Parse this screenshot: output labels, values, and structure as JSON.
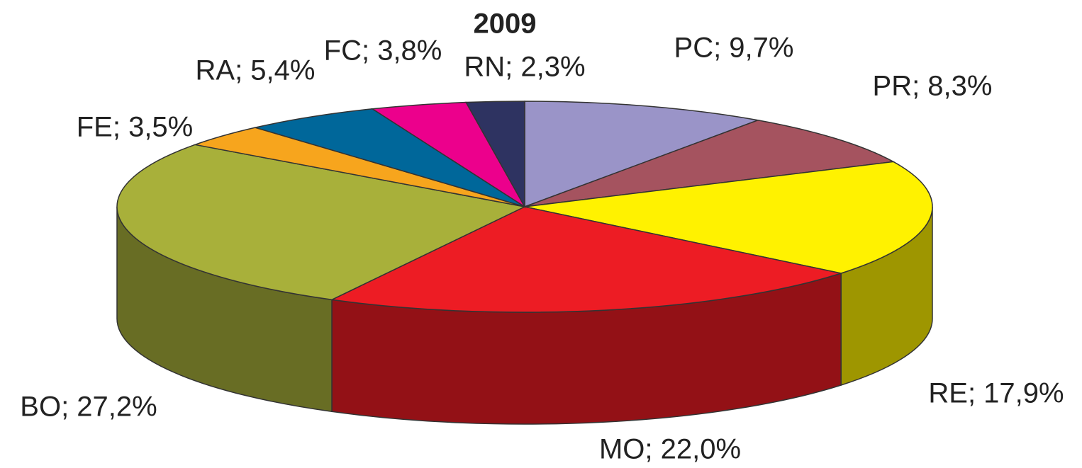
{
  "chart_data": {
    "type": "pie",
    "title": "2009",
    "values": [
      9.7,
      8.3,
      17.9,
      22.0,
      27.2,
      3.5,
      5.4,
      3.8,
      2.3
    ],
    "value_labels": [
      "PC; 9,7%",
      "PR; 8,3%",
      "RE; 17,9%",
      "MO; 22,0%",
      "BO; 27,2%",
      "FE; 3,5%",
      "RA; 5,4%",
      "FC; 3,8%",
      "RN; 2,3%"
    ],
    "colors": [
      "#9a94c8",
      "#a5535f",
      "#fff200",
      "#ed1c24",
      "#a8b03a",
      "#f7a51d",
      "#00679a",
      "#ec008c",
      "#2e3361"
    ]
  }
}
